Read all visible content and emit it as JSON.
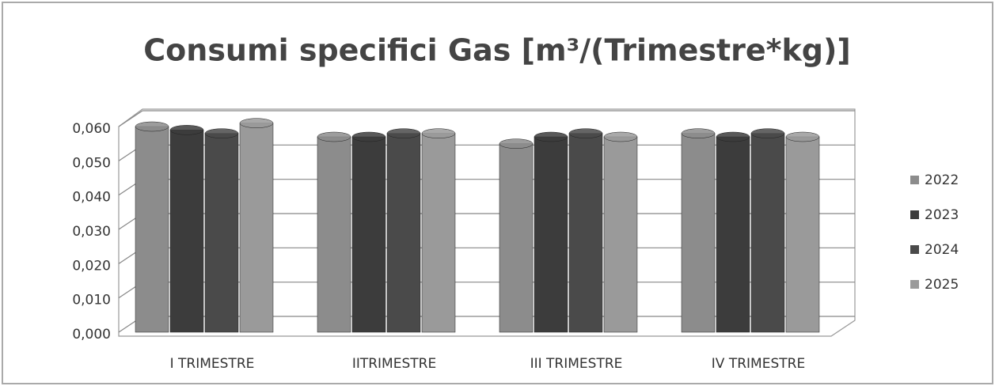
{
  "chart_data": {
    "type": "bar",
    "title": "Consumi specifici Gas [m³/(Trimestre*kg)]",
    "categories": [
      "I TRIMESTRE",
      "IITRIMESTRE",
      "III TRIMESTRE",
      "IV TRIMESTRE"
    ],
    "series": [
      {
        "name": "2022",
        "color": "#8c8c8c",
        "values": [
          0.06,
          0.057,
          0.055,
          0.058
        ]
      },
      {
        "name": "2023",
        "color": "#3c3c3c",
        "values": [
          0.059,
          0.057,
          0.057,
          0.057
        ]
      },
      {
        "name": "2024",
        "color": "#4a4a4a",
        "values": [
          0.058,
          0.058,
          0.058,
          0.058
        ]
      },
      {
        "name": "2025",
        "color": "#9a9a9a",
        "values": [
          0.061,
          0.058,
          0.057,
          0.057
        ]
      }
    ],
    "ylim": [
      0,
      0.06
    ],
    "yticks": [
      {
        "value": 0,
        "label": "0,000"
      },
      {
        "value": 0.01,
        "label": "0,010"
      },
      {
        "value": 0.02,
        "label": "0,020"
      },
      {
        "value": 0.03,
        "label": "0,030"
      },
      {
        "value": 0.04,
        "label": "0,040"
      },
      {
        "value": 0.05,
        "label": "0,050"
      },
      {
        "value": 0.06,
        "label": "0,060"
      }
    ],
    "grid": true,
    "legend": "right"
  }
}
